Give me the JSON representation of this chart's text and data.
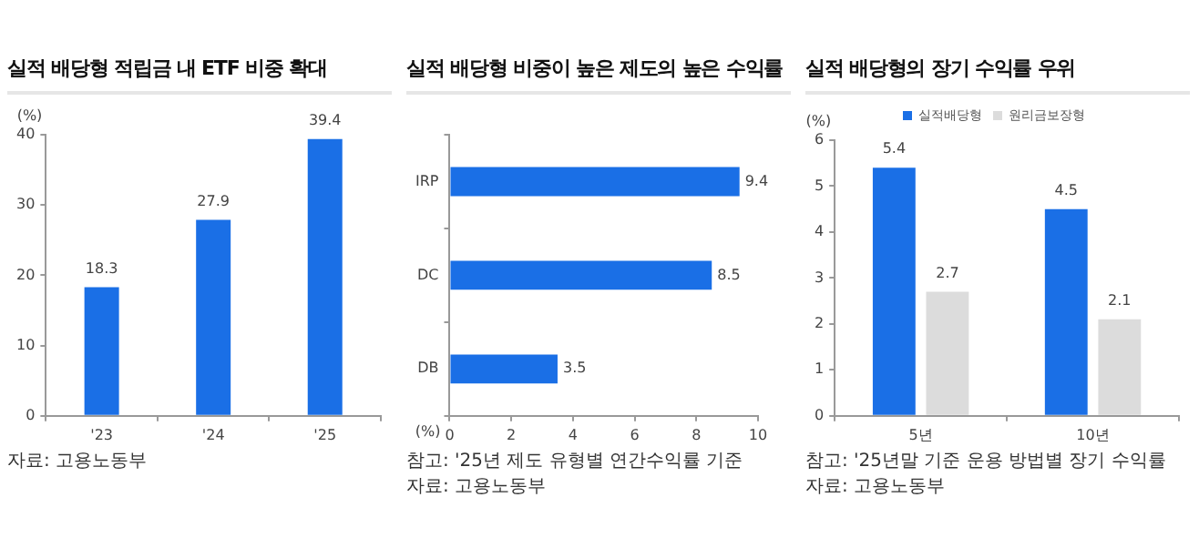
{
  "chart_data": [
    {
      "type": "bar",
      "title": "실적 배당형 적립금 내 ETF 비중 확대",
      "ylabel": "(%)",
      "categories": [
        "'23",
        "'24",
        "'25"
      ],
      "values": [
        18.3,
        27.9,
        39.4
      ],
      "color": "#1a6fe6",
      "ylim": [
        0,
        40
      ],
      "yticks": [
        0,
        10,
        20,
        30,
        40
      ],
      "data_labels": true,
      "annotations": [
        "자료: 고용노동부"
      ]
    },
    {
      "type": "bar",
      "orientation": "horizontal",
      "title": "실적 배당형 비중이 높은 제도의 높은 수익률",
      "xlabel": "(%)",
      "categories": [
        "IRP",
        "DC",
        "DB"
      ],
      "values": [
        9.4,
        8.5,
        3.5
      ],
      "color": "#1a6fe6",
      "xlim": [
        0,
        10
      ],
      "xticks": [
        0,
        2,
        4,
        6,
        8,
        10
      ],
      "data_labels": true,
      "annotations": [
        "참고: '25년 제도 유형별 연간수익률 기준",
        "자료: 고용노동부"
      ]
    },
    {
      "type": "bar",
      "title": "실적 배당형의 장기 수익률 우위",
      "ylabel": "(%)",
      "categories": [
        "5년",
        "10년"
      ],
      "series": [
        {
          "name": "실적배당형",
          "color": "#1a6fe6",
          "values": [
            5.4,
            4.5
          ]
        },
        {
          "name": "원리금보장형",
          "color": "#dcdcdc",
          "values": [
            2.7,
            2.1
          ]
        }
      ],
      "ylim": [
        0,
        6
      ],
      "yticks": [
        0,
        1,
        2,
        3,
        4,
        5,
        6
      ],
      "legend": "top",
      "data_labels": true,
      "annotations": [
        "참고: '25년말 기준 운용 방법별 장기 수익률",
        "자료: 고용노동부"
      ]
    }
  ]
}
